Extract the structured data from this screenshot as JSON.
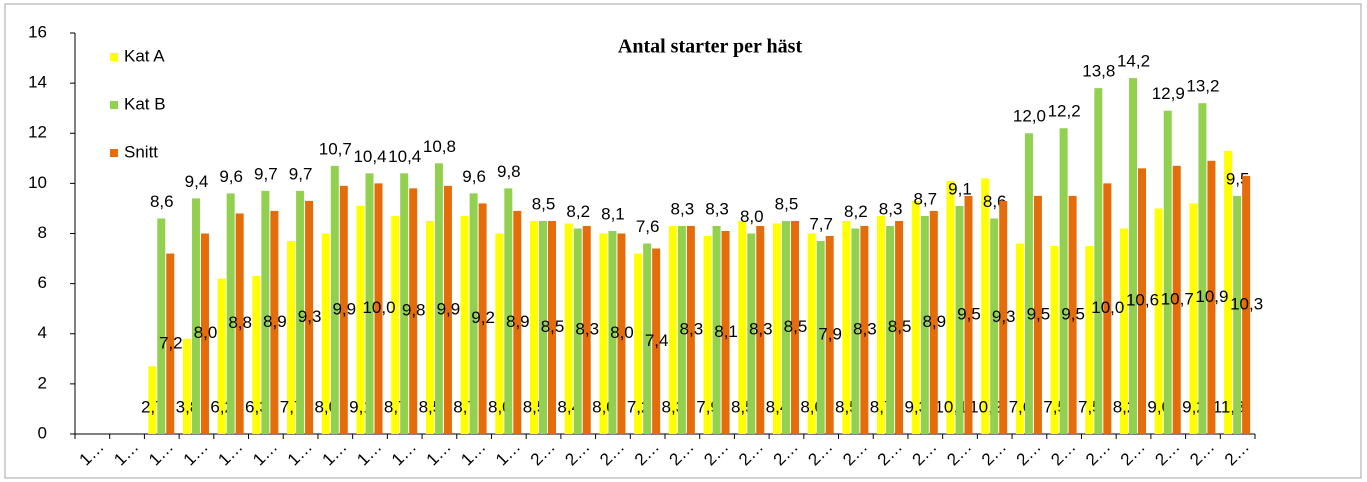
{
  "chart_data": {
    "type": "bar",
    "title": "Antal starter per häst",
    "categories": [
      "1…",
      "1…",
      "1…",
      "1…",
      "1…",
      "1…",
      "1…",
      "1…",
      "1…",
      "1…",
      "1…",
      "1…",
      "1…",
      "2…",
      "2…",
      "2…",
      "2…",
      "2…",
      "2…",
      "2…",
      "2…",
      "2…",
      "2…",
      "2…",
      "2…",
      "2…",
      "2…",
      "2…",
      "2…",
      "2…",
      "2…",
      "2…",
      "2…",
      "2…"
    ],
    "series": [
      {
        "name": "Kat A",
        "color": "#ffff00",
        "label_position": "inside-base",
        "values": [
          null,
          null,
          2.7,
          3.8,
          6.2,
          6.3,
          7.7,
          8.0,
          9.1,
          8.7,
          8.5,
          8.7,
          8.0,
          8.5,
          8.4,
          8.0,
          7.2,
          8.3,
          7.9,
          8.5,
          8.4,
          8.0,
          8.5,
          8.7,
          9.3,
          10.1,
          10.2,
          7.6,
          7.5,
          7.5,
          8.2,
          9.0,
          9.2,
          11.3
        ],
        "value_labels": [
          null,
          null,
          "2,7",
          "3,8",
          "6,2",
          "6,3",
          "7,7",
          "8,0",
          "9,1",
          "8,7",
          "8,5",
          "8,7",
          "8,0",
          "8,5",
          "8,4",
          "8,0",
          "7,2",
          "8,3",
          "7,9",
          "8,5",
          "8,4",
          "8,0",
          "8,5",
          "8,7",
          "9,3",
          "10,1",
          "10,2",
          "7,6",
          "7,5",
          "7,5",
          "8,2",
          "9,0",
          "9,2",
          "11,3"
        ]
      },
      {
        "name": "Kat B",
        "color": "#92d050",
        "label_position": "outside-end",
        "values": [
          null,
          null,
          8.6,
          9.4,
          9.6,
          9.7,
          9.7,
          10.7,
          10.4,
          10.4,
          10.8,
          9.6,
          9.8,
          8.5,
          8.2,
          8.1,
          7.6,
          8.3,
          8.3,
          8.0,
          8.5,
          7.7,
          8.2,
          8.3,
          8.7,
          9.1,
          8.6,
          12.0,
          12.2,
          13.8,
          14.2,
          12.9,
          13.2,
          9.5
        ],
        "value_labels": [
          null,
          null,
          "8,6",
          "9,4",
          "9,6",
          "9,7",
          "9,7",
          "10,7",
          "10,4",
          "10,4",
          "10,8",
          "9,6",
          "9,8",
          "8,5",
          "8,2",
          "8,1",
          "7,6",
          "8,3",
          "8,3",
          "8,0",
          "8,5",
          "7,7",
          "8,2",
          "8,3",
          "8,7",
          "9,1",
          "8,6",
          "12,0",
          "12,2",
          "13,8",
          "14,2",
          "12,9",
          "13,2",
          "9,5"
        ]
      },
      {
        "name": "Snitt",
        "color": "#e46c0a",
        "label_position": "center",
        "values": [
          null,
          null,
          7.2,
          8.0,
          8.8,
          8.9,
          9.3,
          9.9,
          10.0,
          9.8,
          9.9,
          9.2,
          8.9,
          8.5,
          8.3,
          8.0,
          7.4,
          8.3,
          8.1,
          8.3,
          8.5,
          7.9,
          8.3,
          8.5,
          8.9,
          9.5,
          9.3,
          9.5,
          9.5,
          10.0,
          10.6,
          10.7,
          10.9,
          10.3
        ],
        "value_labels": [
          null,
          null,
          "7,2",
          "8,0",
          "8,8",
          "8,9",
          "9,3",
          "9,9",
          "10,0",
          "9,8",
          "9,9",
          "9,2",
          "8,9",
          "8,5",
          "8,3",
          "8,0",
          "7,4",
          "8,3",
          "8,1",
          "8,3",
          "8,5",
          "7,9",
          "8,3",
          "8,5",
          "8,9",
          "9,5",
          "9,3",
          "9,5",
          "9,5",
          "10,0",
          "10,6",
          "10,7",
          "10,9",
          "10,3"
        ]
      }
    ],
    "ylim": [
      0,
      16
    ],
    "yticks": [
      0,
      2,
      4,
      6,
      8,
      10,
      12,
      14,
      16
    ],
    "grid": false,
    "legend": "top-left"
  }
}
